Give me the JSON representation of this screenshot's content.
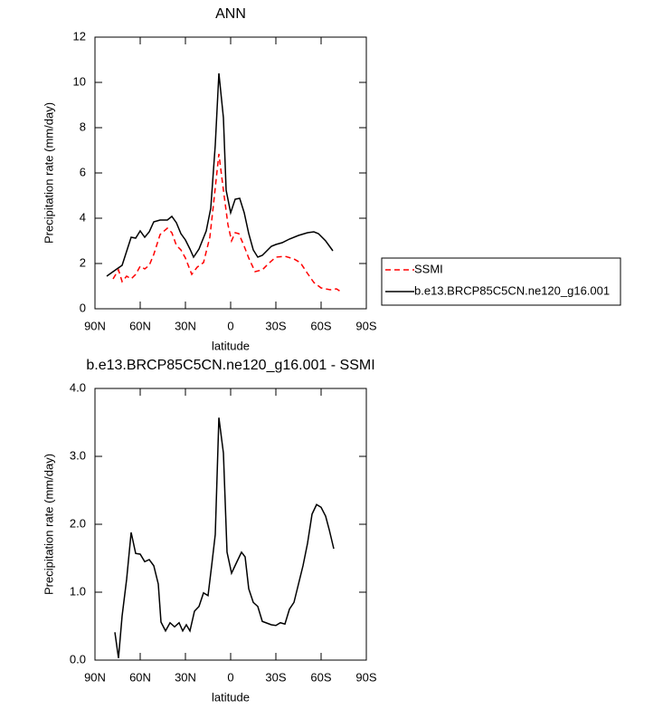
{
  "chart_data": [
    {
      "type": "line",
      "title": "ANN",
      "xlabel": "latitude",
      "ylabel": "Precipitation rate (mm/day)",
      "xlim": [
        90,
        -90
      ],
      "xticks": [
        {
          "value": 90,
          "label": "90N"
        },
        {
          "value": 60,
          "label": "60N"
        },
        {
          "value": 30,
          "label": "30N"
        },
        0,
        {
          "value": -30,
          "label": "30S"
        },
        {
          "value": -60,
          "label": "60S"
        },
        {
          "value": -90,
          "label": "90S"
        }
      ],
      "ylim": [
        0,
        12
      ],
      "yticks": [
        0,
        2,
        4,
        6,
        8,
        10,
        12
      ],
      "legend": "right",
      "series": [
        {
          "name": "SSMI",
          "color": "#ff0000",
          "line_style": "dashed",
          "x": [
            78,
            74.4,
            72,
            69,
            66,
            63,
            60,
            57,
            54,
            51,
            46.8,
            42,
            39,
            36,
            33,
            30,
            25.8,
            22.2,
            18,
            13.8,
            11.4,
            7.8,
            4.8,
            1.8,
            -0.6,
            -3,
            -5.4,
            -9,
            -12,
            -16.2,
            -21,
            -25.8,
            -30,
            -36,
            -42,
            -46.2,
            -51,
            -55.2,
            -60,
            -66,
            -70.2,
            -73.8
          ],
          "values": [
            1.32,
            1.72,
            1.2,
            1.44,
            1.32,
            1.52,
            1.88,
            1.76,
            1.92,
            2.4,
            3.28,
            3.56,
            3.36,
            2.8,
            2.6,
            2.24,
            1.52,
            1.84,
            2.04,
            3.16,
            4.6,
            6.84,
            5.24,
            3.72,
            3.0,
            3.36,
            3.32,
            2.76,
            2.24,
            1.64,
            1.72,
            2.04,
            2.28,
            2.32,
            2.2,
            2.04,
            1.56,
            1.16,
            0.92,
            0.84,
            0.88,
            0.72
          ]
        },
        {
          "name": "b.e13.BRCP85C5CN.ne120_g16.001",
          "color": "#000000",
          "line_style": "solid",
          "x": [
            82.2,
            78,
            72,
            66,
            63,
            60,
            57,
            54,
            51,
            46.8,
            42,
            39,
            36,
            33,
            30,
            27,
            24.6,
            21,
            16.2,
            13.2,
            10.2,
            7.8,
            4.8,
            3,
            0,
            -3,
            -6,
            -9,
            -12,
            -15,
            -18,
            -21,
            -24,
            -27,
            -30,
            -34.2,
            -39,
            -45,
            -51,
            -55.2,
            -58.2,
            -63,
            -67.8
          ],
          "values": [
            1.44,
            1.64,
            1.92,
            3.16,
            3.12,
            3.44,
            3.16,
            3.4,
            3.84,
            3.92,
            3.92,
            4.08,
            3.8,
            3.32,
            3.04,
            2.64,
            2.28,
            2.64,
            3.44,
            4.44,
            7.24,
            10.4,
            8.44,
            5.24,
            4.24,
            4.84,
            4.88,
            4.24,
            3.32,
            2.6,
            2.28,
            2.36,
            2.56,
            2.76,
            2.84,
            2.92,
            3.08,
            3.24,
            3.36,
            3.4,
            3.32,
            3.0,
            2.56
          ]
        }
      ]
    },
    {
      "type": "line",
      "title": "b.e13.BRCP85C5CN.ne120_g16.001 - SSMI",
      "xlabel": "latitude",
      "ylabel": "Precipitation rate (mm/day)",
      "xlim": [
        90,
        -90
      ],
      "xticks": [
        {
          "value": 90,
          "label": "90N"
        },
        {
          "value": 60,
          "label": "60N"
        },
        {
          "value": 30,
          "label": "30N"
        },
        0,
        {
          "value": -30,
          "label": "30S"
        },
        {
          "value": -60,
          "label": "60S"
        },
        {
          "value": -90,
          "label": "90S"
        }
      ],
      "ylim": [
        0,
        4
      ],
      "yticks": [
        {
          "value": 0,
          "label": "0.0"
        },
        {
          "value": 1,
          "label": "1.0"
        },
        {
          "value": 2,
          "label": "2.0"
        },
        {
          "value": 3,
          "label": "3.0"
        },
        {
          "value": 4,
          "label": "4.0"
        }
      ],
      "series": [
        {
          "color": "#000000",
          "line_style": "solid",
          "x": [
            76.8,
            74.4,
            72,
            69,
            66,
            63,
            60,
            57,
            54,
            51,
            48,
            46.2,
            43.2,
            40.2,
            37.2,
            34.2,
            31.8,
            29.4,
            27,
            24,
            21,
            18,
            15,
            12.6,
            10.2,
            7.8,
            4.8,
            2.4,
            -0.6,
            -4.2,
            -7.2,
            -9.6,
            -12,
            -15,
            -18,
            -21,
            -27,
            -30,
            -33,
            -36,
            -39,
            -42,
            -45,
            -48,
            -51,
            -54,
            -57,
            -60,
            -63,
            -65.4,
            -68.4
          ],
          "values": [
            0.41,
            0.03,
            0.65,
            1.19,
            1.88,
            1.57,
            1.56,
            1.45,
            1.48,
            1.39,
            1.12,
            0.56,
            0.43,
            0.55,
            0.49,
            0.55,
            0.43,
            0.52,
            0.43,
            0.72,
            0.79,
            0.99,
            0.95,
            1.39,
            1.85,
            3.57,
            3.05,
            1.59,
            1.28,
            1.45,
            1.59,
            1.52,
            1.05,
            0.85,
            0.79,
            0.57,
            0.52,
            0.51,
            0.55,
            0.53,
            0.75,
            0.85,
            1.12,
            1.39,
            1.72,
            2.15,
            2.29,
            2.25,
            2.12,
            1.92,
            1.64
          ]
        }
      ]
    }
  ]
}
